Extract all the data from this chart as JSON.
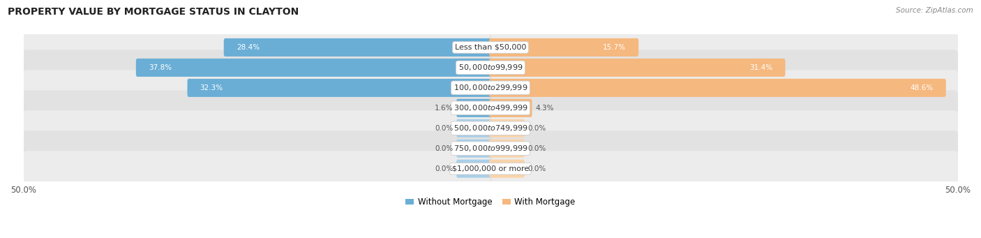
{
  "title": "PROPERTY VALUE BY MORTGAGE STATUS IN CLAYTON",
  "source": "Source: ZipAtlas.com",
  "categories": [
    "Less than $50,000",
    "$50,000 to $99,999",
    "$100,000 to $299,999",
    "$300,000 to $499,999",
    "$500,000 to $749,999",
    "$750,000 to $999,999",
    "$1,000,000 or more"
  ],
  "without_mortgage": [
    28.4,
    37.8,
    32.3,
    1.6,
    0.0,
    0.0,
    0.0
  ],
  "with_mortgage": [
    15.7,
    31.4,
    48.6,
    4.3,
    0.0,
    0.0,
    0.0
  ],
  "color_without": "#6aaed6",
  "color_with": "#f5b87e",
  "color_without_light": "#aacfe8",
  "color_with_light": "#f9d4aa",
  "x_min": -50.0,
  "x_max": 50.0,
  "label_threshold_white": 8.0,
  "min_bar_display": 3.5,
  "row_bg_odd": "#ececec",
  "row_bg_even": "#e2e2e2",
  "legend_without": "Without Mortgage",
  "legend_with": "With Mortgage",
  "title_fontsize": 10,
  "label_fontsize": 7.5,
  "cat_fontsize": 8.0,
  "source_fontsize": 7.5
}
